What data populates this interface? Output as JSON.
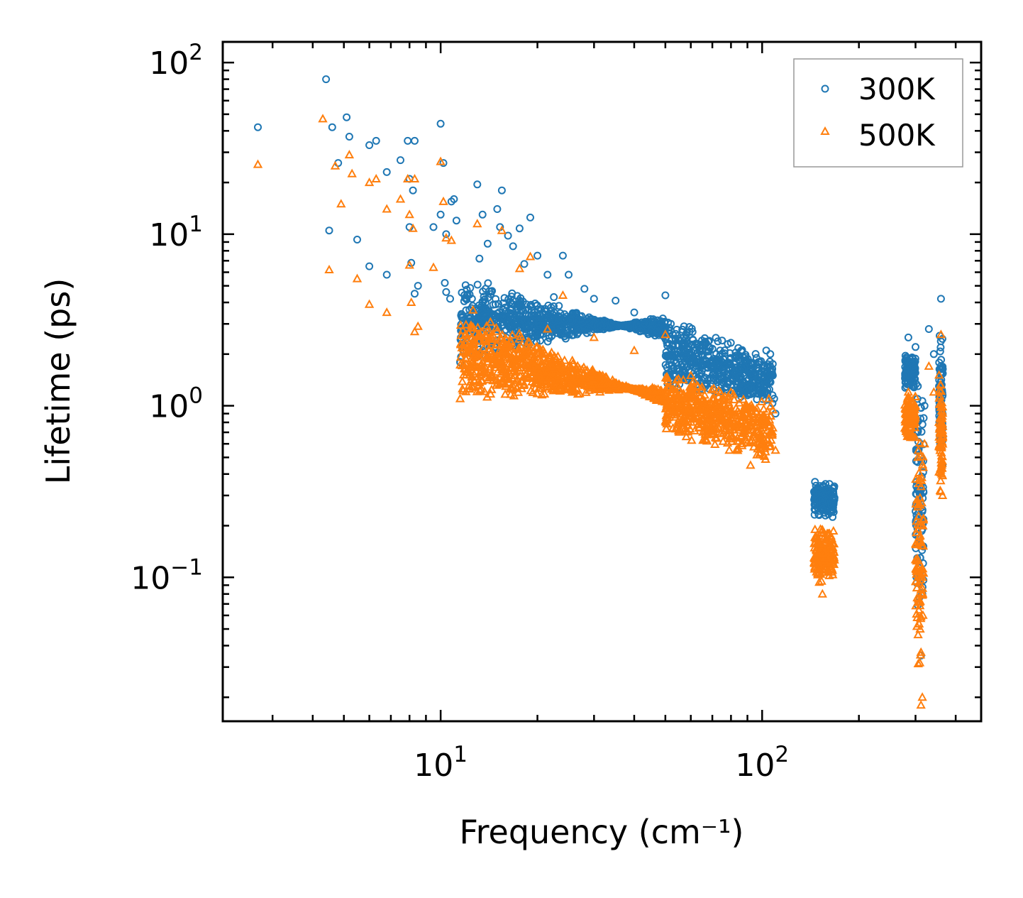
{
  "chart_data": {
    "type": "scatter",
    "title": "",
    "xlabel": "Frequency (cm⁻¹)",
    "ylabel": "Lifetime (ps)",
    "xscale": "log",
    "yscale": "log",
    "xlim": [
      2.1,
      480
    ],
    "ylim": [
      0.0145,
      132
    ],
    "x_ticks": [
      {
        "value": 10,
        "base": "10",
        "exp": "1"
      },
      {
        "value": 100,
        "base": "10",
        "exp": "2"
      }
    ],
    "y_ticks": [
      {
        "value": 100,
        "base": "10",
        "exp": "2"
      },
      {
        "value": 10,
        "base": "10",
        "exp": "1"
      },
      {
        "value": 1,
        "base": "10",
        "exp": "0"
      },
      {
        "value": 0.1,
        "base": "10",
        "exp": "−1"
      }
    ],
    "legend": {
      "position": "top-right",
      "entries": [
        "300K",
        "500K"
      ]
    },
    "series": [
      {
        "name": "300K",
        "color": "#1f77b4",
        "marker": "circle",
        "points": [
          [
            2.7,
            42
          ],
          [
            4.4,
            80
          ],
          [
            4.6,
            42
          ],
          [
            4.8,
            26
          ],
          [
            5.1,
            48
          ],
          [
            5.2,
            37
          ],
          [
            4.5,
            10.5
          ],
          [
            5.5,
            9.3
          ],
          [
            6.0,
            33
          ],
          [
            6.3,
            35
          ],
          [
            6.0,
            6.5
          ],
          [
            6.8,
            23
          ],
          [
            6.8,
            5.8
          ],
          [
            7.5,
            27
          ],
          [
            7.9,
            35
          ],
          [
            8.3,
            35
          ],
          [
            8.0,
            21
          ],
          [
            8.2,
            18
          ],
          [
            8.0,
            11
          ],
          [
            8.3,
            4.5
          ],
          [
            8.5,
            5.0
          ],
          [
            8.1,
            6.8
          ],
          [
            9.5,
            11
          ],
          [
            10.0,
            44
          ],
          [
            10.2,
            26
          ],
          [
            10.0,
            13
          ],
          [
            10.4,
            10
          ],
          [
            10.8,
            15.5
          ],
          [
            11,
            16
          ],
          [
            11.2,
            12
          ],
          [
            10.3,
            5.2
          ],
          [
            10.4,
            4.6
          ],
          [
            10.7,
            4.2
          ],
          [
            11.5,
            1.8
          ],
          [
            12.0,
            3.6
          ],
          [
            12.5,
            2.0
          ],
          [
            13,
            19.5
          ],
          [
            13.5,
            13
          ],
          [
            13.2,
            7.2
          ],
          [
            14.0,
            8.8
          ],
          [
            15.0,
            14
          ],
          [
            15.5,
            18
          ],
          [
            15.3,
            11
          ],
          [
            16.2,
            9.8
          ],
          [
            16.8,
            8.5
          ],
          [
            17.6,
            10.8
          ],
          [
            18.2,
            6.7
          ],
          [
            19.0,
            12.5
          ],
          [
            20.0,
            7.5
          ],
          [
            21.5,
            5.8
          ],
          [
            22.5,
            4.3
          ],
          [
            24,
            7.5
          ],
          [
            25,
            5.8
          ],
          [
            28,
            4.8
          ],
          [
            30,
            4.2
          ],
          [
            35,
            4.1
          ],
          [
            40,
            3.5
          ],
          [
            45,
            3.2
          ],
          [
            50,
            4.4
          ],
          [
            52,
            3.0
          ],
          [
            58,
            2.6
          ],
          [
            65,
            2.4
          ],
          [
            72,
            2.0
          ],
          [
            80,
            1.9
          ],
          [
            90,
            1.8
          ],
          [
            96,
            1.9
          ],
          [
            103,
            2.1
          ],
          [
            106,
            2.0
          ],
          [
            108,
            1.5
          ],
          [
            109,
            1.1
          ],
          [
            110,
            0.9
          ],
          [
            146,
            0.36
          ],
          [
            150,
            0.33
          ],
          [
            154,
            0.25
          ],
          [
            158,
            0.3
          ],
          [
            162,
            0.35
          ],
          [
            167,
            0.24
          ],
          [
            285,
            2.5
          ],
          [
            290,
            1.8
          ],
          [
            300,
            2.2
          ],
          [
            305,
            1.3
          ],
          [
            310,
            0.13
          ],
          [
            312,
            0.035
          ],
          [
            315,
            0.08
          ],
          [
            320,
            1.0
          ],
          [
            330,
            2.8
          ],
          [
            342,
            2.0
          ],
          [
            355,
            1.3
          ],
          [
            360,
            4.2
          ],
          [
            362,
            0.7
          ],
          [
            364,
            0.45
          ]
        ],
        "bands": [
          {
            "x": [
              11.5,
              50
            ],
            "y": [
              [
                1.7,
                6.0
              ],
              [
                3.4,
                2.4
              ]
            ]
          },
          {
            "x": [
              50,
              108
            ],
            "y": [
              [
                1.2,
                3.5
              ],
              [
                1.0,
                1.9
              ]
            ]
          },
          {
            "x": [
              145,
              168
            ],
            "y": [
              [
                0.22,
                0.36
              ],
              [
                0.22,
                0.36
              ]
            ]
          },
          {
            "x": [
              278,
              300
            ],
            "y": [
              [
                1.2,
                2.1
              ],
              [
                1.2,
                2.1
              ]
            ]
          },
          {
            "x": [
              300,
              318
            ],
            "y": [
              [
                0.05,
                1.6
              ],
              [
                0.05,
                1.6
              ]
            ]
          },
          {
            "x": [
              355,
              365
            ],
            "y": [
              [
                0.5,
                2.8
              ],
              [
                0.5,
                2.8
              ]
            ]
          }
        ]
      },
      {
        "name": "500K",
        "color": "#ff7f0e",
        "marker": "triangle",
        "points": [
          [
            2.7,
            25.5
          ],
          [
            4.3,
            47
          ],
          [
            4.7,
            25
          ],
          [
            4.9,
            15
          ],
          [
            5.2,
            29
          ],
          [
            5.3,
            22.5
          ],
          [
            4.5,
            6.2
          ],
          [
            5.5,
            5.5
          ],
          [
            6.0,
            20
          ],
          [
            6.3,
            21
          ],
          [
            6.0,
            3.9
          ],
          [
            6.8,
            14
          ],
          [
            6.8,
            3.5
          ],
          [
            7.5,
            16
          ],
          [
            7.9,
            21
          ],
          [
            8.3,
            21
          ],
          [
            8.0,
            13
          ],
          [
            8.2,
            10.8
          ],
          [
            8.0,
            6.6
          ],
          [
            8.3,
            2.7
          ],
          [
            8.5,
            2.9
          ],
          [
            8.1,
            4.0
          ],
          [
            9.5,
            6.4
          ],
          [
            10.0,
            26.5
          ],
          [
            10.2,
            15.5
          ],
          [
            10.4,
            9.5
          ],
          [
            10.8,
            9.2
          ],
          [
            11.5,
            1.1
          ],
          [
            12.5,
            1.3
          ],
          [
            13,
            11.5
          ],
          [
            15.5,
            10.5
          ],
          [
            17.6,
            6.3
          ],
          [
            19.0,
            7.4
          ],
          [
            21.5,
            2.8
          ],
          [
            24,
            4.4
          ],
          [
            30,
            2.5
          ],
          [
            40,
            2.1
          ],
          [
            50,
            2.6
          ],
          [
            60,
            1.5
          ],
          [
            70,
            1.1
          ],
          [
            80,
            1.2
          ],
          [
            92,
            0.45
          ],
          [
            96,
            0.8
          ],
          [
            105,
            1.1
          ],
          [
            110,
            0.55
          ],
          [
            146,
            0.19
          ],
          [
            150,
            0.11
          ],
          [
            154,
            0.08
          ],
          [
            158,
            0.13
          ],
          [
            162,
            0.18
          ],
          [
            167,
            0.14
          ],
          [
            285,
            1.2
          ],
          [
            290,
            0.9
          ],
          [
            300,
            1.0
          ],
          [
            305,
            0.5
          ],
          [
            310,
            0.05
          ],
          [
            312,
            0.018
          ],
          [
            315,
            0.02
          ],
          [
            320,
            0.6
          ],
          [
            330,
            1.7
          ],
          [
            342,
            1.2
          ],
          [
            355,
            0.8
          ],
          [
            360,
            2.6
          ],
          [
            362,
            0.4
          ],
          [
            364,
            0.3
          ]
        ],
        "bands": [
          {
            "x": [
              11.5,
              50
            ],
            "y": [
              [
                1.0,
                4.0
              ],
              [
                1.3,
                1.0
              ]
            ]
          },
          {
            "x": [
              50,
              108
            ],
            "y": [
              [
                0.65,
                1.6
              ],
              [
                0.45,
                1.1
              ]
            ]
          },
          {
            "x": [
              145,
              168
            ],
            "y": [
              [
                0.09,
                0.2
              ],
              [
                0.09,
                0.2
              ]
            ]
          },
          {
            "x": [
              278,
              300
            ],
            "y": [
              [
                0.6,
                1.2
              ],
              [
                0.6,
                1.2
              ]
            ]
          },
          {
            "x": [
              300,
              318
            ],
            "y": [
              [
                0.025,
                0.9
              ],
              [
                0.025,
                0.9
              ]
            ]
          },
          {
            "x": [
              355,
              365
            ],
            "y": [
              [
                0.3,
                1.7
              ],
              [
                0.3,
                1.7
              ]
            ]
          }
        ]
      }
    ]
  }
}
